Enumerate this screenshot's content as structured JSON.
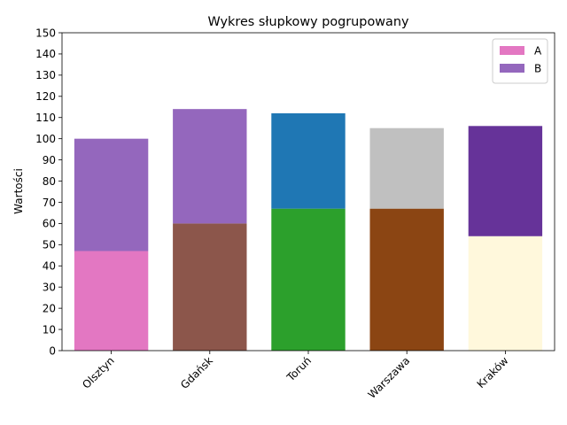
{
  "chart_data": {
    "type": "bar",
    "stacked": true,
    "title": "Wykres słupkowy pogrupowany",
    "xlabel": "",
    "ylabel": "Wartości",
    "categories": [
      "Olsztyn",
      "Gdańsk",
      "Toruń",
      "Warszawa",
      "Kraków"
    ],
    "ylim": [
      0,
      150
    ],
    "yticks": [
      0,
      10,
      20,
      30,
      40,
      50,
      60,
      70,
      80,
      90,
      100,
      110,
      120,
      130,
      140,
      150
    ],
    "grid": false,
    "legend_position": "top-right",
    "series": [
      {
        "name": "A",
        "values": [
          47,
          60,
          67,
          67,
          54
        ],
        "colors": [
          "#e377c2",
          "#8c564b",
          "#2ca02c",
          "#8b4513",
          "#fff8dc"
        ],
        "legend_color": "#e377c2"
      },
      {
        "name": "B",
        "values": [
          53,
          54,
          45,
          38,
          52
        ],
        "colors": [
          "#9467bd",
          "#9467bd",
          "#1f77b4",
          "#c0c0c0",
          "#663399"
        ],
        "legend_color": "#9467bd"
      }
    ]
  }
}
